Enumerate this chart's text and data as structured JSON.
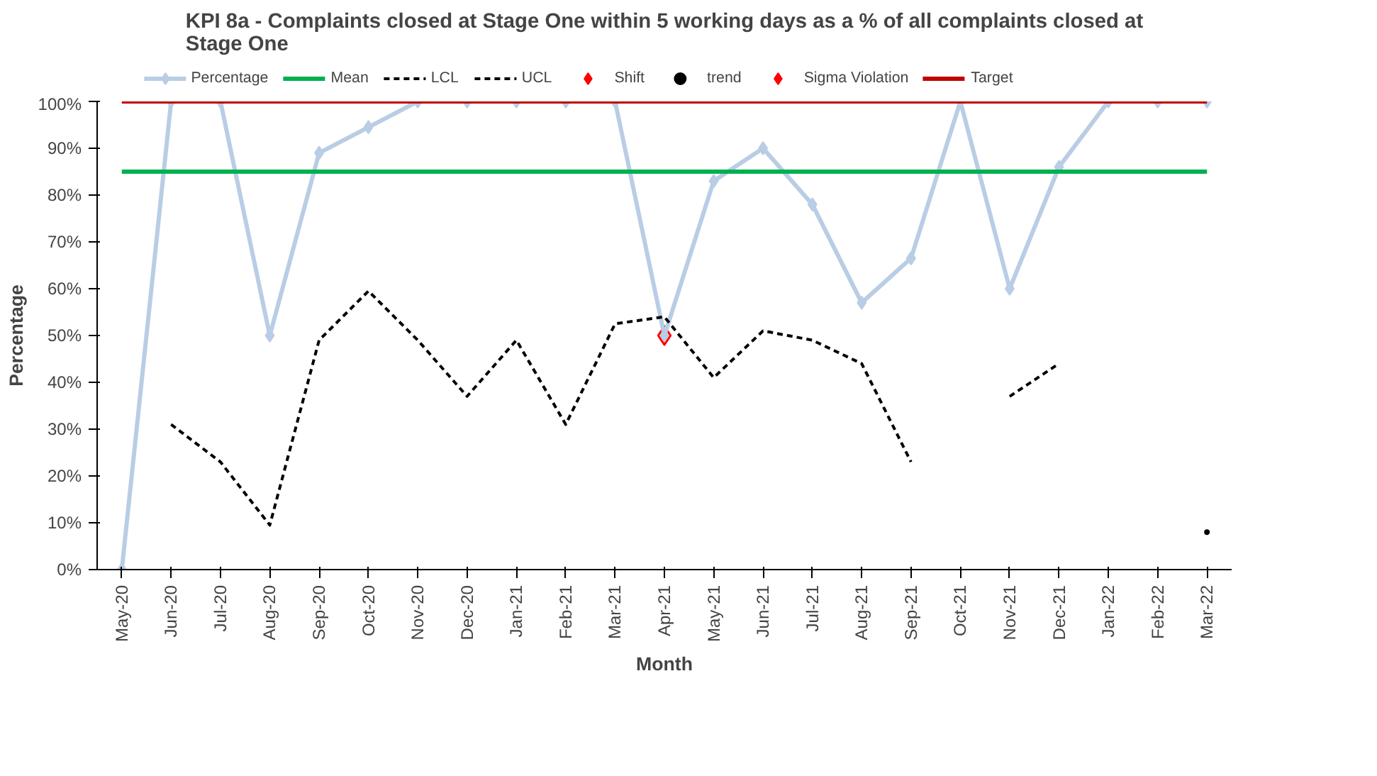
{
  "chart_data": {
    "type": "line",
    "title": "KPI 8a - Complaints closed at Stage One within 5 working days as a % of all complaints closed at\nStage One",
    "xlabel": "Month",
    "ylabel": "Percentage",
    "categories": [
      "May-20",
      "Jun-20",
      "Jul-20",
      "Aug-20",
      "Sep-20",
      "Oct-20",
      "Nov-20",
      "Dec-20",
      "Jan-21",
      "Feb-21",
      "Mar-21",
      "Apr-21",
      "May-21",
      "Jun-21",
      "Jul-21",
      "Aug-21",
      "Sep-21",
      "Oct-21",
      "Nov-21",
      "Dec-21",
      "Jan-22",
      "Feb-22",
      "Mar-22"
    ],
    "ylim": [
      0,
      100
    ],
    "yticks": [
      {
        "value": 0,
        "label": "0%"
      },
      {
        "value": 10,
        "label": "10%"
      },
      {
        "value": 20,
        "label": "20%"
      },
      {
        "value": 30,
        "label": "30%"
      },
      {
        "value": 40,
        "label": "40%"
      },
      {
        "value": 50,
        "label": "50%"
      },
      {
        "value": 60,
        "label": "60%"
      },
      {
        "value": 70,
        "label": "70%"
      },
      {
        "value": 80,
        "label": "80%"
      },
      {
        "value": 90,
        "label": "90%"
      },
      {
        "value": 100,
        "label": "100%"
      }
    ],
    "legend": "top",
    "series": [
      {
        "name": "Percentage",
        "color": "#b9cde5",
        "marker": "diamond",
        "values": [
          0,
          100,
          100,
          50,
          89,
          94.5,
          100,
          100,
          100,
          100,
          100,
          50,
          83,
          90,
          78,
          57,
          66.5,
          100,
          60,
          86,
          100,
          100,
          100
        ]
      },
      {
        "name": "Mean",
        "color": "#00b050",
        "marker": "none",
        "values": [
          85,
          85,
          85,
          85,
          85,
          85,
          85,
          85,
          85,
          85,
          85,
          85,
          85,
          85,
          85,
          85,
          85,
          85,
          85,
          85,
          85,
          85,
          85
        ]
      },
      {
        "name": "LCL",
        "color": "#000000",
        "line_style": "dashed",
        "marker": "none",
        "values": [
          null,
          31,
          23,
          9.5,
          49,
          59.5,
          49,
          37,
          49,
          31,
          52.5,
          54,
          41,
          51,
          49,
          44,
          23,
          null,
          37,
          44,
          null,
          null,
          8
        ]
      },
      {
        "name": "UCL",
        "color": "#000000",
        "line_style": "dashed",
        "marker": "none",
        "values": [
          null,
          null,
          null,
          null,
          null,
          null,
          null,
          null,
          null,
          null,
          null,
          null,
          null,
          null,
          null,
          null,
          null,
          null,
          null,
          null,
          null,
          null,
          null
        ]
      },
      {
        "name": "Shift",
        "type": "scatter",
        "color": "#ff0000",
        "marker": "diamond",
        "values": [
          null,
          null,
          null,
          null,
          null,
          null,
          null,
          null,
          null,
          null,
          null,
          null,
          null,
          null,
          null,
          null,
          null,
          null,
          null,
          null,
          null,
          null,
          null
        ]
      },
      {
        "name": "trend",
        "type": "scatter",
        "color": "#000000",
        "marker": "circle",
        "values": [
          null,
          null,
          null,
          null,
          null,
          null,
          null,
          null,
          null,
          null,
          null,
          null,
          null,
          null,
          null,
          null,
          null,
          null,
          null,
          null,
          null,
          null,
          null
        ]
      },
      {
        "name": "Sigma Violation",
        "type": "scatter",
        "color": "#ff0000",
        "marker": "diamond",
        "values": [
          null,
          null,
          null,
          null,
          null,
          null,
          null,
          null,
          null,
          null,
          null,
          50,
          null,
          null,
          null,
          null,
          null,
          null,
          null,
          null,
          null,
          null,
          null
        ]
      },
      {
        "name": "Target",
        "color": "#c00000",
        "marker": "none",
        "values": [
          100,
          100,
          100,
          100,
          100,
          100,
          100,
          100,
          100,
          100,
          100,
          100,
          100,
          100,
          100,
          100,
          100,
          100,
          100,
          100,
          100,
          100,
          100
        ]
      }
    ]
  }
}
